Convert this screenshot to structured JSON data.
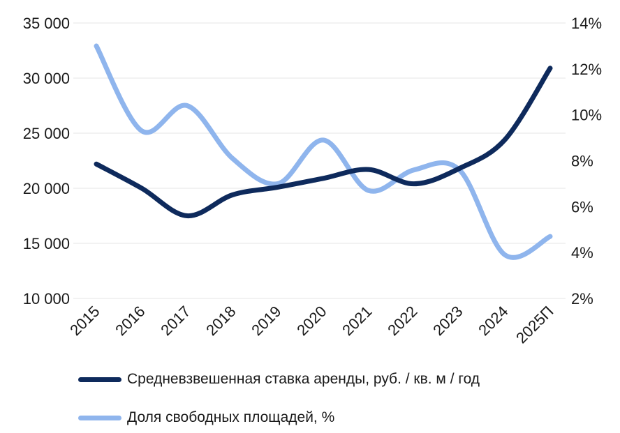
{
  "chart_data": {
    "type": "line",
    "categories": [
      "2015",
      "2016",
      "2017",
      "2018",
      "2019",
      "2020",
      "2021",
      "2022",
      "2023",
      "2024",
      "2025П"
    ],
    "series": [
      {
        "name": "Средневзвешенная ставка аренды, руб. / кв. м / год",
        "axis": "left",
        "color": "#0e2a5c",
        "values": [
          22200,
          20000,
          17500,
          19400,
          20100,
          20900,
          21700,
          20400,
          21800,
          24400,
          30900
        ]
      },
      {
        "name": "Доля свободных площадей, %",
        "axis": "right",
        "color": "#8fb5ed",
        "values": [
          13.0,
          9.3,
          10.4,
          8.1,
          7.0,
          8.9,
          6.7,
          7.6,
          7.6,
          3.9,
          4.7
        ]
      }
    ],
    "left_axis": {
      "ylim": [
        10000,
        35000
      ],
      "ticks": [
        10000,
        15000,
        20000,
        25000,
        30000,
        35000
      ],
      "tick_labels": [
        "10 000",
        "15 000",
        "20 000",
        "25 000",
        "30 000",
        "35 000"
      ]
    },
    "right_axis": {
      "ylim": [
        2,
        14
      ],
      "ticks": [
        2,
        4,
        6,
        8,
        10,
        12,
        14
      ],
      "tick_labels": [
        "2%",
        "4%",
        "6%",
        "8%",
        "10%",
        "12%",
        "14%"
      ]
    },
    "grid": true,
    "legend_position": "bottom"
  }
}
